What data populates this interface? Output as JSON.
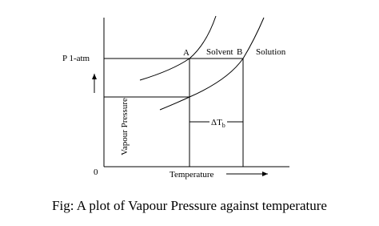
{
  "diagram": {
    "pressure_label": "P 1-atm",
    "point_a": "A",
    "solvent_label": "Solvent",
    "point_b": "B",
    "solution_label": "Solution",
    "y_axis_label": "Vapour Pressure",
    "origin_label": "0",
    "x_axis_label": "Temperature",
    "delta_label": "ΔT",
    "delta_subscript": "b"
  },
  "caption": "Fig: A plot of Vapour Pressure against temperature"
}
